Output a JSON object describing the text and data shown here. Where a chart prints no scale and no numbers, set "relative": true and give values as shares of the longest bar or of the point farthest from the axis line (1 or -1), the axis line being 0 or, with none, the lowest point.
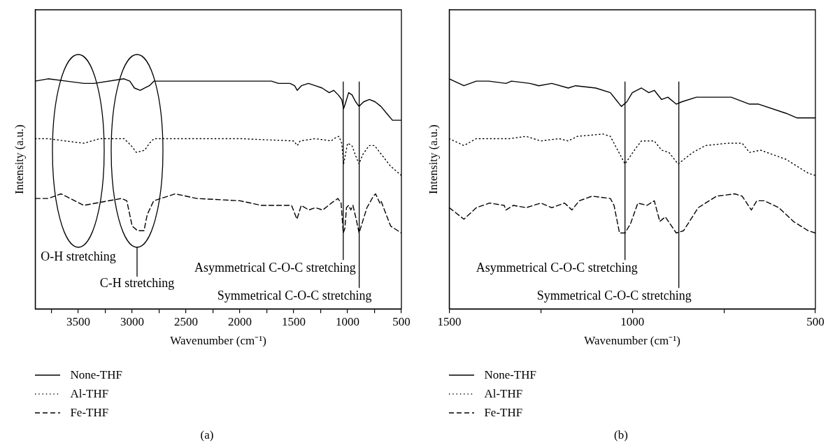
{
  "chart_data": [
    {
      "type": "line",
      "xlabel": "Wavenumber (cm⁻¹)",
      "ylabel": "Intensity (a.u.)",
      "relative": true,
      "grid": false,
      "legend": "bottom",
      "xlim": [
        3900,
        500
      ],
      "xticks": [
        {
          "value": 3750,
          "label": null
        },
        3500,
        {
          "value": 3250,
          "label": null
        },
        3000,
        {
          "value": 2750,
          "label": null
        },
        2500,
        {
          "value": 2250,
          "label": null
        },
        2000,
        {
          "value": 1750,
          "label": null
        },
        1500,
        {
          "value": 1250,
          "label": null
        },
        1000,
        {
          "value": 750,
          "label": null
        },
        500
      ],
      "series": [
        {
          "name": "None-THF",
          "color": "#000000",
          "line_style": "solid",
          "x": [
            3900,
            3781,
            3610,
            3449,
            3353,
            3075,
            3022,
            2979,
            2925,
            2883,
            2840,
            2797,
            2712,
            2284,
            1706,
            1642,
            1599,
            1535,
            1492,
            1467,
            1428,
            1364,
            1300,
            1236,
            1171,
            1129,
            1086,
            1054,
            1037,
            1022,
            990,
            958,
            925,
            893,
            851,
            797,
            744,
            690,
            637,
            583,
            519,
            500
          ],
          "values": [
            0.99,
            1.0,
            0.99,
            0.98,
            0.98,
            1.0,
            0.99,
            0.96,
            0.95,
            0.96,
            0.97,
            0.99,
            0.99,
            0.99,
            0.99,
            0.98,
            0.98,
            0.98,
            0.97,
            0.95,
            0.97,
            0.98,
            0.97,
            0.96,
            0.94,
            0.95,
            0.93,
            0.91,
            0.87,
            0.89,
            0.94,
            0.93,
            0.9,
            0.88,
            0.9,
            0.91,
            0.9,
            0.88,
            0.85,
            0.82,
            0.82,
            0.82
          ]
        },
        {
          "name": "Al-THF",
          "color": "#000000",
          "line_style": "dotted",
          "x": [
            3900,
            3781,
            3620,
            3449,
            3300,
            3075,
            3010,
            2960,
            2883,
            2840,
            2797,
            2500,
            2000,
            1500,
            1467,
            1440,
            1300,
            1150,
            1129,
            1080,
            1054,
            1037,
            1020,
            1000,
            960,
            920,
            893,
            860,
            800,
            750,
            700,
            600,
            500
          ],
          "values": [
            0.74,
            0.74,
            0.73,
            0.72,
            0.74,
            0.74,
            0.71,
            0.68,
            0.69,
            0.72,
            0.74,
            0.74,
            0.74,
            0.73,
            0.71,
            0.73,
            0.74,
            0.73,
            0.74,
            0.75,
            0.72,
            0.63,
            0.67,
            0.72,
            0.71,
            0.66,
            0.63,
            0.67,
            0.71,
            0.71,
            0.68,
            0.62,
            0.58
          ]
        },
        {
          "name": "Fe-THF",
          "color": "#000000",
          "line_style": "dashed",
          "x": [
            3900,
            3781,
            3660,
            3449,
            3100,
            3050,
            3000,
            2950,
            2890,
            2860,
            2800,
            2600,
            2400,
            2000,
            1800,
            1600,
            1520,
            1470,
            1430,
            1360,
            1300,
            1230,
            1150,
            1090,
            1060,
            1040,
            1025,
            1010,
            990,
            970,
            950,
            920,
            893,
            860,
            820,
            760,
            740,
            700,
            690,
            600,
            500
          ],
          "values": [
            0.48,
            0.48,
            0.5,
            0.45,
            0.48,
            0.47,
            0.36,
            0.34,
            0.34,
            0.41,
            0.47,
            0.5,
            0.48,
            0.47,
            0.45,
            0.45,
            0.45,
            0.39,
            0.45,
            0.43,
            0.44,
            0.43,
            0.46,
            0.48,
            0.46,
            0.33,
            0.35,
            0.44,
            0.45,
            0.43,
            0.45,
            0.39,
            0.33,
            0.38,
            0.44,
            0.49,
            0.5,
            0.46,
            0.47,
            0.36,
            0.33
          ]
        }
      ],
      "ref_lines": [
        {
          "axis": "x",
          "value": 1040,
          "label": "Asymmetrical C-O-C stretching"
        },
        {
          "axis": "x",
          "value": 892,
          "label": "Symmetrical C-O-C stretching"
        }
      ],
      "annotations": [
        "O-H stretching",
        "C-H stretching",
        "(a)"
      ]
    },
    {
      "type": "line",
      "xlabel": "Wavenumber (cm⁻¹)",
      "ylabel": "Intensity (a.u.)",
      "relative": true,
      "grid": false,
      "legend": "bottom",
      "xlim": [
        1500,
        500
      ],
      "xticks": [
        1500,
        {
          "value": 1250,
          "label": null
        },
        1000,
        {
          "value": 750,
          "label": null
        },
        500
      ],
      "series": [
        {
          "name": "None-THF",
          "color": "#000000",
          "line_style": "solid",
          "x": [
            1500,
            1460,
            1426,
            1392,
            1345,
            1330,
            1280,
            1255,
            1220,
            1175,
            1155,
            1100,
            1060,
            1045,
            1030,
            1015,
            1000,
            975,
            955,
            940,
            920,
            903,
            880,
            865,
            825,
            780,
            730,
            680,
            655,
            580,
            550,
            500
          ],
          "values": [
            1.0,
            0.97,
            0.99,
            0.99,
            0.98,
            0.99,
            0.98,
            0.97,
            0.98,
            0.96,
            0.97,
            0.96,
            0.94,
            0.91,
            0.88,
            0.9,
            0.94,
            0.96,
            0.94,
            0.95,
            0.91,
            0.92,
            0.89,
            0.9,
            0.92,
            0.92,
            0.92,
            0.89,
            0.89,
            0.85,
            0.83,
            0.83
          ]
        },
        {
          "name": "Al-THF",
          "color": "#000000",
          "line_style": "dotted",
          "x": [
            1500,
            1460,
            1426,
            1345,
            1335,
            1290,
            1250,
            1200,
            1175,
            1150,
            1080,
            1060,
            1040,
            1020,
            990,
            975,
            940,
            920,
            900,
            875,
            835,
            800,
            740,
            700,
            680,
            650,
            580,
            520,
            500
          ],
          "values": [
            0.74,
            0.71,
            0.74,
            0.74,
            0.74,
            0.75,
            0.73,
            0.74,
            0.73,
            0.75,
            0.76,
            0.75,
            0.69,
            0.63,
            0.7,
            0.73,
            0.73,
            0.69,
            0.68,
            0.63,
            0.68,
            0.71,
            0.72,
            0.72,
            0.68,
            0.69,
            0.65,
            0.59,
            0.58
          ]
        },
        {
          "name": "Fe-THF",
          "color": "#000000",
          "line_style": "dashed",
          "x": [
            1500,
            1460,
            1426,
            1390,
            1350,
            1345,
            1325,
            1290,
            1250,
            1220,
            1185,
            1165,
            1145,
            1110,
            1060,
            1050,
            1035,
            1020,
            1005,
            985,
            960,
            940,
            925,
            910,
            880,
            860,
            820,
            770,
            720,
            700,
            675,
            660,
            640,
            600,
            560,
            520,
            500
          ],
          "values": [
            0.44,
            0.39,
            0.44,
            0.46,
            0.45,
            0.43,
            0.45,
            0.44,
            0.46,
            0.44,
            0.46,
            0.43,
            0.47,
            0.49,
            0.48,
            0.45,
            0.33,
            0.33,
            0.37,
            0.46,
            0.45,
            0.47,
            0.38,
            0.4,
            0.33,
            0.34,
            0.44,
            0.49,
            0.5,
            0.49,
            0.43,
            0.47,
            0.47,
            0.44,
            0.38,
            0.34,
            0.33
          ]
        }
      ],
      "ref_lines": [
        {
          "axis": "x",
          "value": 1020,
          "label": "Asymmetrical C-O-C stretching"
        },
        {
          "axis": "x",
          "value": 873,
          "label": "Symmetrical C-O-C stretching"
        }
      ],
      "annotations": [
        "(b)"
      ]
    }
  ]
}
